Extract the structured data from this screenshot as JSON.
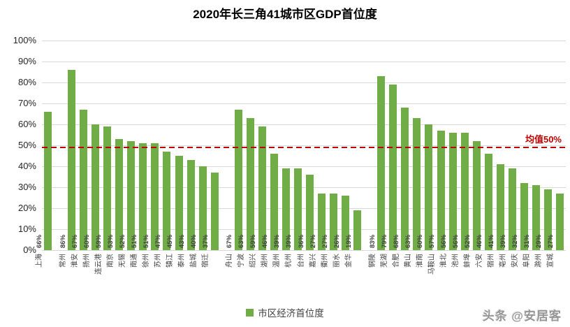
{
  "title": "2020年长三角41城市区GDP首位度",
  "watermark": "头条 @安居客",
  "chart_data": {
    "type": "bar",
    "title": "2020年长三角41城市区GDP首位度",
    "xlabel": "",
    "ylabel": "",
    "ylim": [
      0,
      100
    ],
    "y_ticks": [
      "0%",
      "10%",
      "20%",
      "30%",
      "40%",
      "50%",
      "60%",
      "70%",
      "80%",
      "90%",
      "100%"
    ],
    "grid": true,
    "bar_color": "#70ad47",
    "grid_color": "#d9d9d9",
    "data_label_suffix": "%",
    "legend_position": "bottom",
    "legend": [
      {
        "label": "市区经济首位度",
        "color": "#70ad47"
      }
    ],
    "mean_line": {
      "label": "均值50%",
      "value": 49.4,
      "color": "#c00000",
      "style": "dashed"
    },
    "groups": [
      {
        "categories": [
          "上海"
        ],
        "values": [
          66
        ]
      },
      {
        "categories": [
          "常州",
          "淮安",
          "扬州",
          "连云港",
          "南京",
          "无锡",
          "南通",
          "徐州",
          "苏州",
          "镇江",
          "泰州",
          "盐城",
          "宿迁"
        ],
        "values": [
          86,
          67,
          60,
          59,
          53,
          52,
          51,
          51,
          47,
          45,
          43,
          40,
          37
        ]
      },
      {
        "categories": [
          "舟山",
          "宁波",
          "绍兴",
          "湖州",
          "温州",
          "杭州",
          "台州",
          "嘉兴",
          "衢州",
          "丽水",
          "金华"
        ],
        "values": [
          67,
          63,
          59,
          46,
          39,
          39,
          36,
          27,
          27,
          26,
          19
        ]
      },
      {
        "categories": [
          "铜陵",
          "芜湖",
          "合肥",
          "黄山",
          "淮南",
          "马鞍山",
          "淮北",
          "池州",
          "蚌埠",
          "六安",
          "宿州",
          "亳州",
          "安庆",
          "阜阳",
          "滁州",
          "宣城"
        ],
        "values": [
          83,
          79,
          68,
          63,
          60,
          57,
          56,
          56,
          52,
          46,
          41,
          39,
          32,
          31,
          29,
          27
        ]
      }
    ]
  }
}
